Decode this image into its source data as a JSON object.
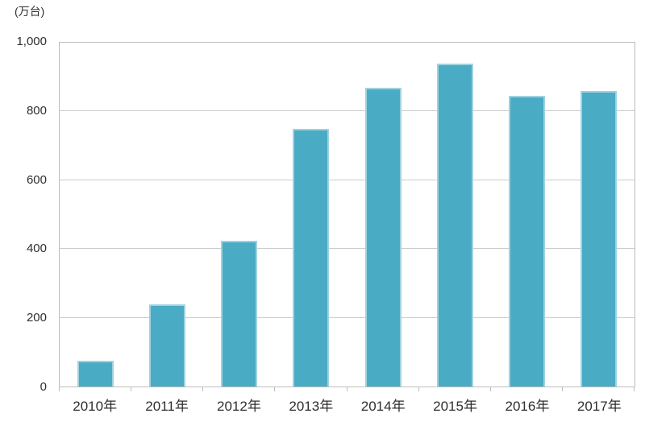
{
  "chart_data": {
    "type": "bar",
    "title": "",
    "unit_label": "(万台)",
    "xlabel": "",
    "ylabel": "(万台)",
    "categories": [
      "2010年",
      "2011年",
      "2012年",
      "2013年",
      "2014年",
      "2015年",
      "2016年",
      "2017年"
    ],
    "values": [
      75,
      240,
      425,
      750,
      870,
      940,
      845,
      860
    ],
    "ylim": [
      0,
      1000
    ],
    "yticks": [
      0,
      200,
      400,
      600,
      800,
      1000
    ],
    "ytick_labels": [
      "0",
      "200",
      "400",
      "600",
      "800",
      "1,000"
    ],
    "grid": true,
    "legend": false,
    "colors": {
      "bar_fill": "#4AABC5",
      "bar_edge": "#9FD2DF",
      "gridline": "#CCCCCC",
      "axis": "#BDBDBD",
      "text": "#2E2E2E",
      "background": "#FFFFFF"
    }
  }
}
